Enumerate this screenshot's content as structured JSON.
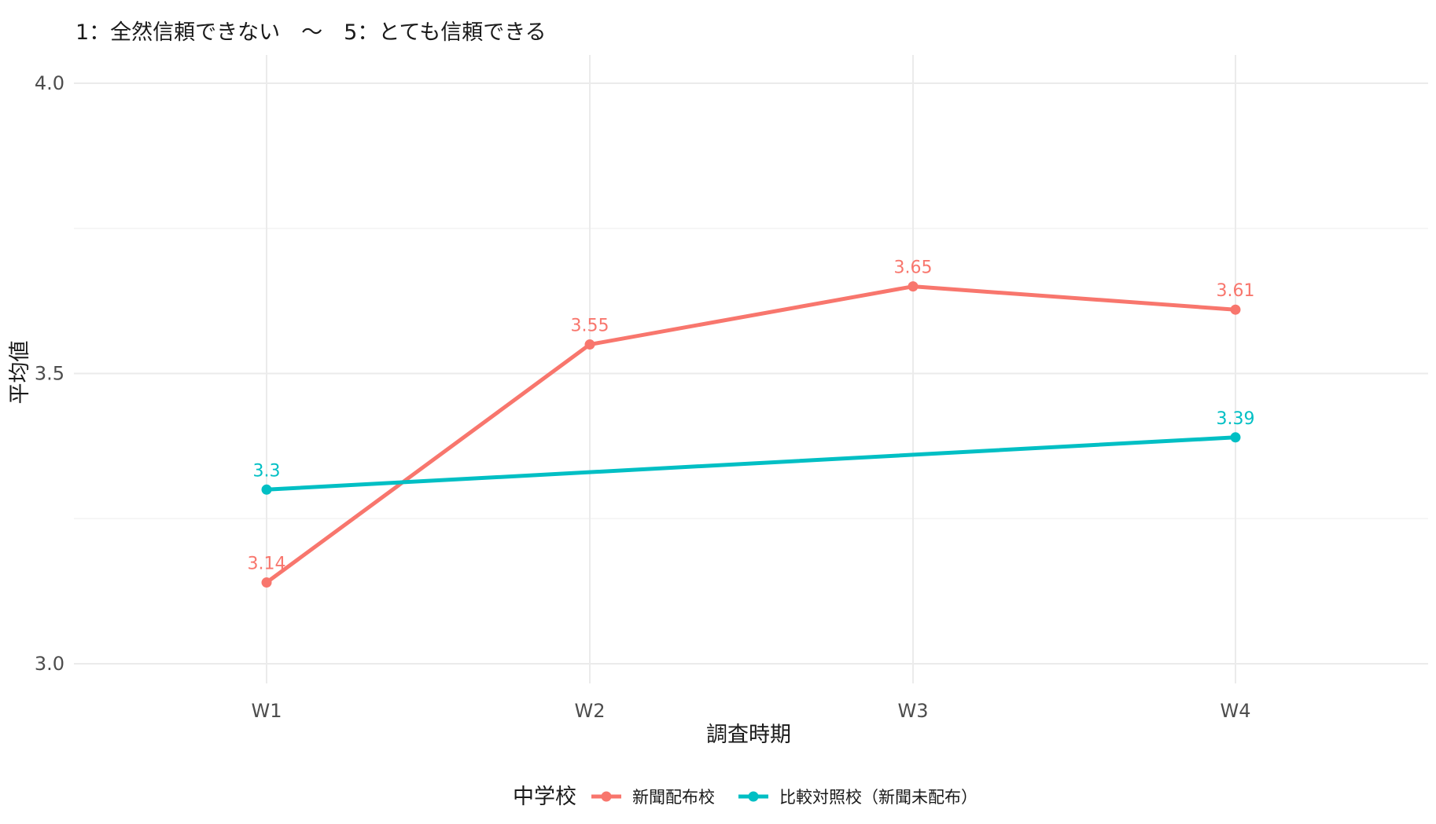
{
  "chart_data": {
    "type": "line",
    "subtitle": "1：全然信頼できない　～　5：とても信頼できる",
    "xlabel": "調査時期",
    "ylabel": "平均値",
    "categories": [
      "W1",
      "W2",
      "W3",
      "W4"
    ],
    "ylim": [
      3.0,
      4.0
    ],
    "yticks": [
      3.0,
      3.5,
      4.0
    ],
    "ytick_labels": [
      "3.0",
      "3.5",
      "4.0"
    ],
    "grid": true,
    "legend": {
      "title": "中学校",
      "position": "bottom"
    },
    "series": [
      {
        "name": "新聞配布校",
        "color": "#F8766D",
        "values": [
          3.14,
          3.55,
          3.65,
          3.61
        ],
        "labels": [
          "3.14",
          "3.55",
          "3.65",
          "3.61"
        ],
        "points": [
          true,
          true,
          true,
          true
        ]
      },
      {
        "name": "比較対照校（新聞未配布）",
        "color": "#00BFC4",
        "values": [
          3.3,
          null,
          null,
          3.39
        ],
        "labels": [
          "3.3",
          "",
          "",
          "3.39"
        ],
        "points": [
          true,
          false,
          false,
          true
        ]
      }
    ]
  }
}
